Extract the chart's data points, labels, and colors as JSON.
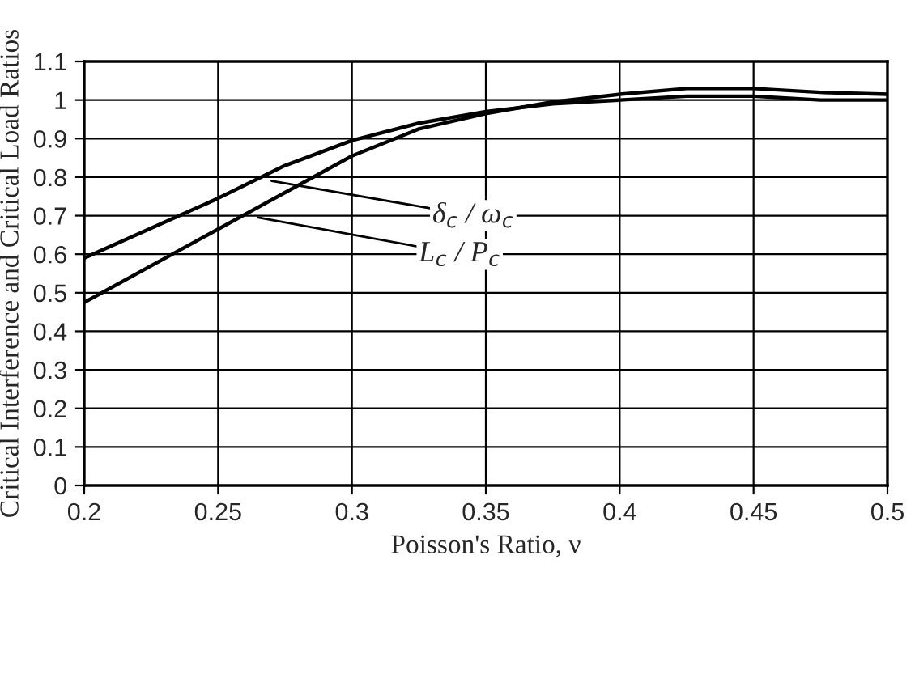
{
  "chart_data": {
    "type": "line",
    "xlabel": "Poisson's Ratio, ν",
    "ylabel": "Critical Interference and Critical Load Ratios",
    "x": [
      0.2,
      0.25,
      0.275,
      0.3,
      0.325,
      0.35,
      0.375,
      0.4,
      0.425,
      0.45,
      0.475,
      0.5
    ],
    "series": [
      {
        "color": "#000000",
        "values": [
          0.59,
          0.745,
          0.83,
          0.895,
          0.94,
          0.97,
          0.99,
          1.0,
          1.01,
          1.01,
          1.0,
          1.0
        ]
      },
      {
        "color": "#000000",
        "values": [
          0.475,
          0.665,
          0.76,
          0.855,
          0.925,
          0.965,
          0.995,
          1.015,
          1.03,
          1.03,
          1.02,
          1.015
        ]
      }
    ],
    "annotations": [
      {
        "text": "δ$_{c}$ / ω$_{c}$",
        "x": 0.27,
        "y": 0.79
      },
      {
        "text": "L$_{c}$ / P$_{c}$",
        "x": 0.265,
        "y": 0.695
      }
    ],
    "xlim": [
      0.2,
      0.5
    ],
    "xticks": [
      0.2,
      0.25,
      0.3,
      0.35,
      0.4,
      0.45,
      0.5
    ],
    "ylim": [
      0,
      1.1
    ],
    "yticks": [
      0,
      0.1,
      0.2,
      0.3,
      0.4,
      0.5,
      0.6,
      0.7,
      0.8,
      0.9,
      1,
      1.1
    ],
    "grid": true,
    "line_style": "solid",
    "marker": "none",
    "legend": false
  }
}
